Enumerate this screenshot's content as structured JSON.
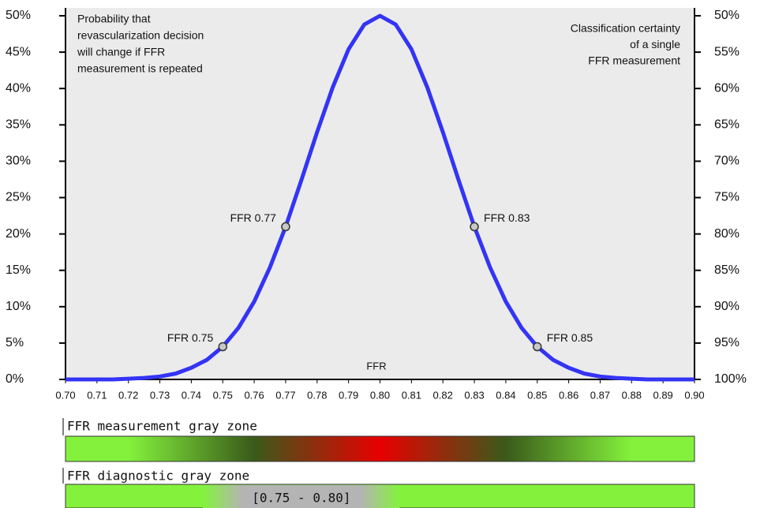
{
  "chart_data": {
    "type": "line",
    "x": [
      0.7,
      0.705,
      0.71,
      0.715,
      0.72,
      0.725,
      0.73,
      0.735,
      0.74,
      0.745,
      0.75,
      0.755,
      0.76,
      0.765,
      0.77,
      0.775,
      0.78,
      0.785,
      0.79,
      0.795,
      0.8,
      0.805,
      0.81,
      0.815,
      0.82,
      0.825,
      0.83,
      0.835,
      0.84,
      0.845,
      0.85,
      0.855,
      0.86,
      0.865,
      0.87,
      0.875,
      0.88,
      0.885,
      0.89,
      0.895,
      0.9
    ],
    "series": [
      {
        "color": "#3434f5",
        "values": [
          0,
          0,
          0,
          0,
          0.1,
          0.2,
          0.4,
          0.8,
          1.6,
          2.7,
          4.5,
          7.1,
          10.7,
          15.4,
          21.0,
          27.4,
          34.0,
          40.2,
          45.4,
          48.8,
          50,
          48.8,
          45.4,
          40.2,
          34.0,
          27.4,
          21.0,
          15.4,
          10.7,
          7.1,
          4.5,
          2.7,
          1.6,
          0.8,
          0.4,
          0.2,
          0.1,
          0,
          0,
          0,
          0
        ]
      }
    ],
    "points": {
      "x": [
        0.75,
        0.77,
        0.83,
        0.85
      ],
      "values": [
        4.5,
        21,
        21,
        4.5
      ],
      "labels": [
        "FFR 0.75",
        "FFR 0.77",
        "FFR 0.83",
        "FFR 0.85"
      ]
    },
    "xlabel": "FFR",
    "xlim": [
      0.7,
      0.9
    ],
    "xticks": [
      {
        "value": 0.7,
        "label": "0.70"
      },
      {
        "value": 0.71,
        "label": "0.71"
      },
      {
        "value": 0.72,
        "label": "0.72"
      },
      {
        "value": 0.73,
        "label": "0.73"
      },
      {
        "value": 0.74,
        "label": "0.74"
      },
      {
        "value": 0.75,
        "label": "0.75"
      },
      {
        "value": 0.76,
        "label": "0.76"
      },
      {
        "value": 0.77,
        "label": "0.77"
      },
      {
        "value": 0.78,
        "label": "0.78"
      },
      {
        "value": 0.79,
        "label": "0.79"
      },
      {
        "value": 0.8,
        "label": "0.80"
      },
      {
        "value": 0.81,
        "label": "0.81"
      },
      {
        "value": 0.82,
        "label": "0.82"
      },
      {
        "value": 0.83,
        "label": "0.83"
      },
      {
        "value": 0.84,
        "label": "0.84"
      },
      {
        "value": 0.85,
        "label": "0.85"
      },
      {
        "value": 0.86,
        "label": "0.86"
      },
      {
        "value": 0.87,
        "label": "0.87"
      },
      {
        "value": 0.88,
        "label": "0.88"
      },
      {
        "value": 0.89,
        "label": "0.89"
      },
      {
        "value": 0.9,
        "label": "0.90"
      }
    ],
    "ylim": [
      0,
      50
    ],
    "yticks": [
      {
        "value": 0,
        "label": "0%"
      },
      {
        "value": 5,
        "label": "5%"
      },
      {
        "value": 10,
        "label": "10%"
      },
      {
        "value": 15,
        "label": "15%"
      },
      {
        "value": 20,
        "label": "20%"
      },
      {
        "value": 25,
        "label": "25%"
      },
      {
        "value": 30,
        "label": "30%"
      },
      {
        "value": 35,
        "label": "35%"
      },
      {
        "value": 40,
        "label": "40%"
      },
      {
        "value": 45,
        "label": "45%"
      },
      {
        "value": 50,
        "label": "50%"
      }
    ],
    "y2lim": [
      100,
      50
    ],
    "y2ticks": [
      {
        "value": 50,
        "label": "50%"
      },
      {
        "value": 55,
        "label": "55%"
      },
      {
        "value": 60,
        "label": "60%"
      },
      {
        "value": 65,
        "label": "65%"
      },
      {
        "value": 70,
        "label": "70%"
      },
      {
        "value": 75,
        "label": "75%"
      },
      {
        "value": 80,
        "label": "80%"
      },
      {
        "value": 85,
        "label": "85%"
      },
      {
        "value": 90,
        "label": "90%"
      },
      {
        "value": 95,
        "label": "95%"
      },
      {
        "value": 100,
        "label": "100%"
      }
    ],
    "left_annotation": [
      "Probability that",
      "revascularization decision",
      "will change if FFR",
      "measurement is repeated"
    ],
    "right_annotation": [
      "Classification certainty",
      "of a single",
      "FFR measurement"
    ],
    "measurement_zone": {
      "label": "FFR measurement gray zone"
    },
    "diagnostic_zone": {
      "label": "FFR diagnostic gray zone",
      "range": [
        0.75,
        0.8
      ],
      "range_label": "[0.75 - 0.80]"
    }
  }
}
